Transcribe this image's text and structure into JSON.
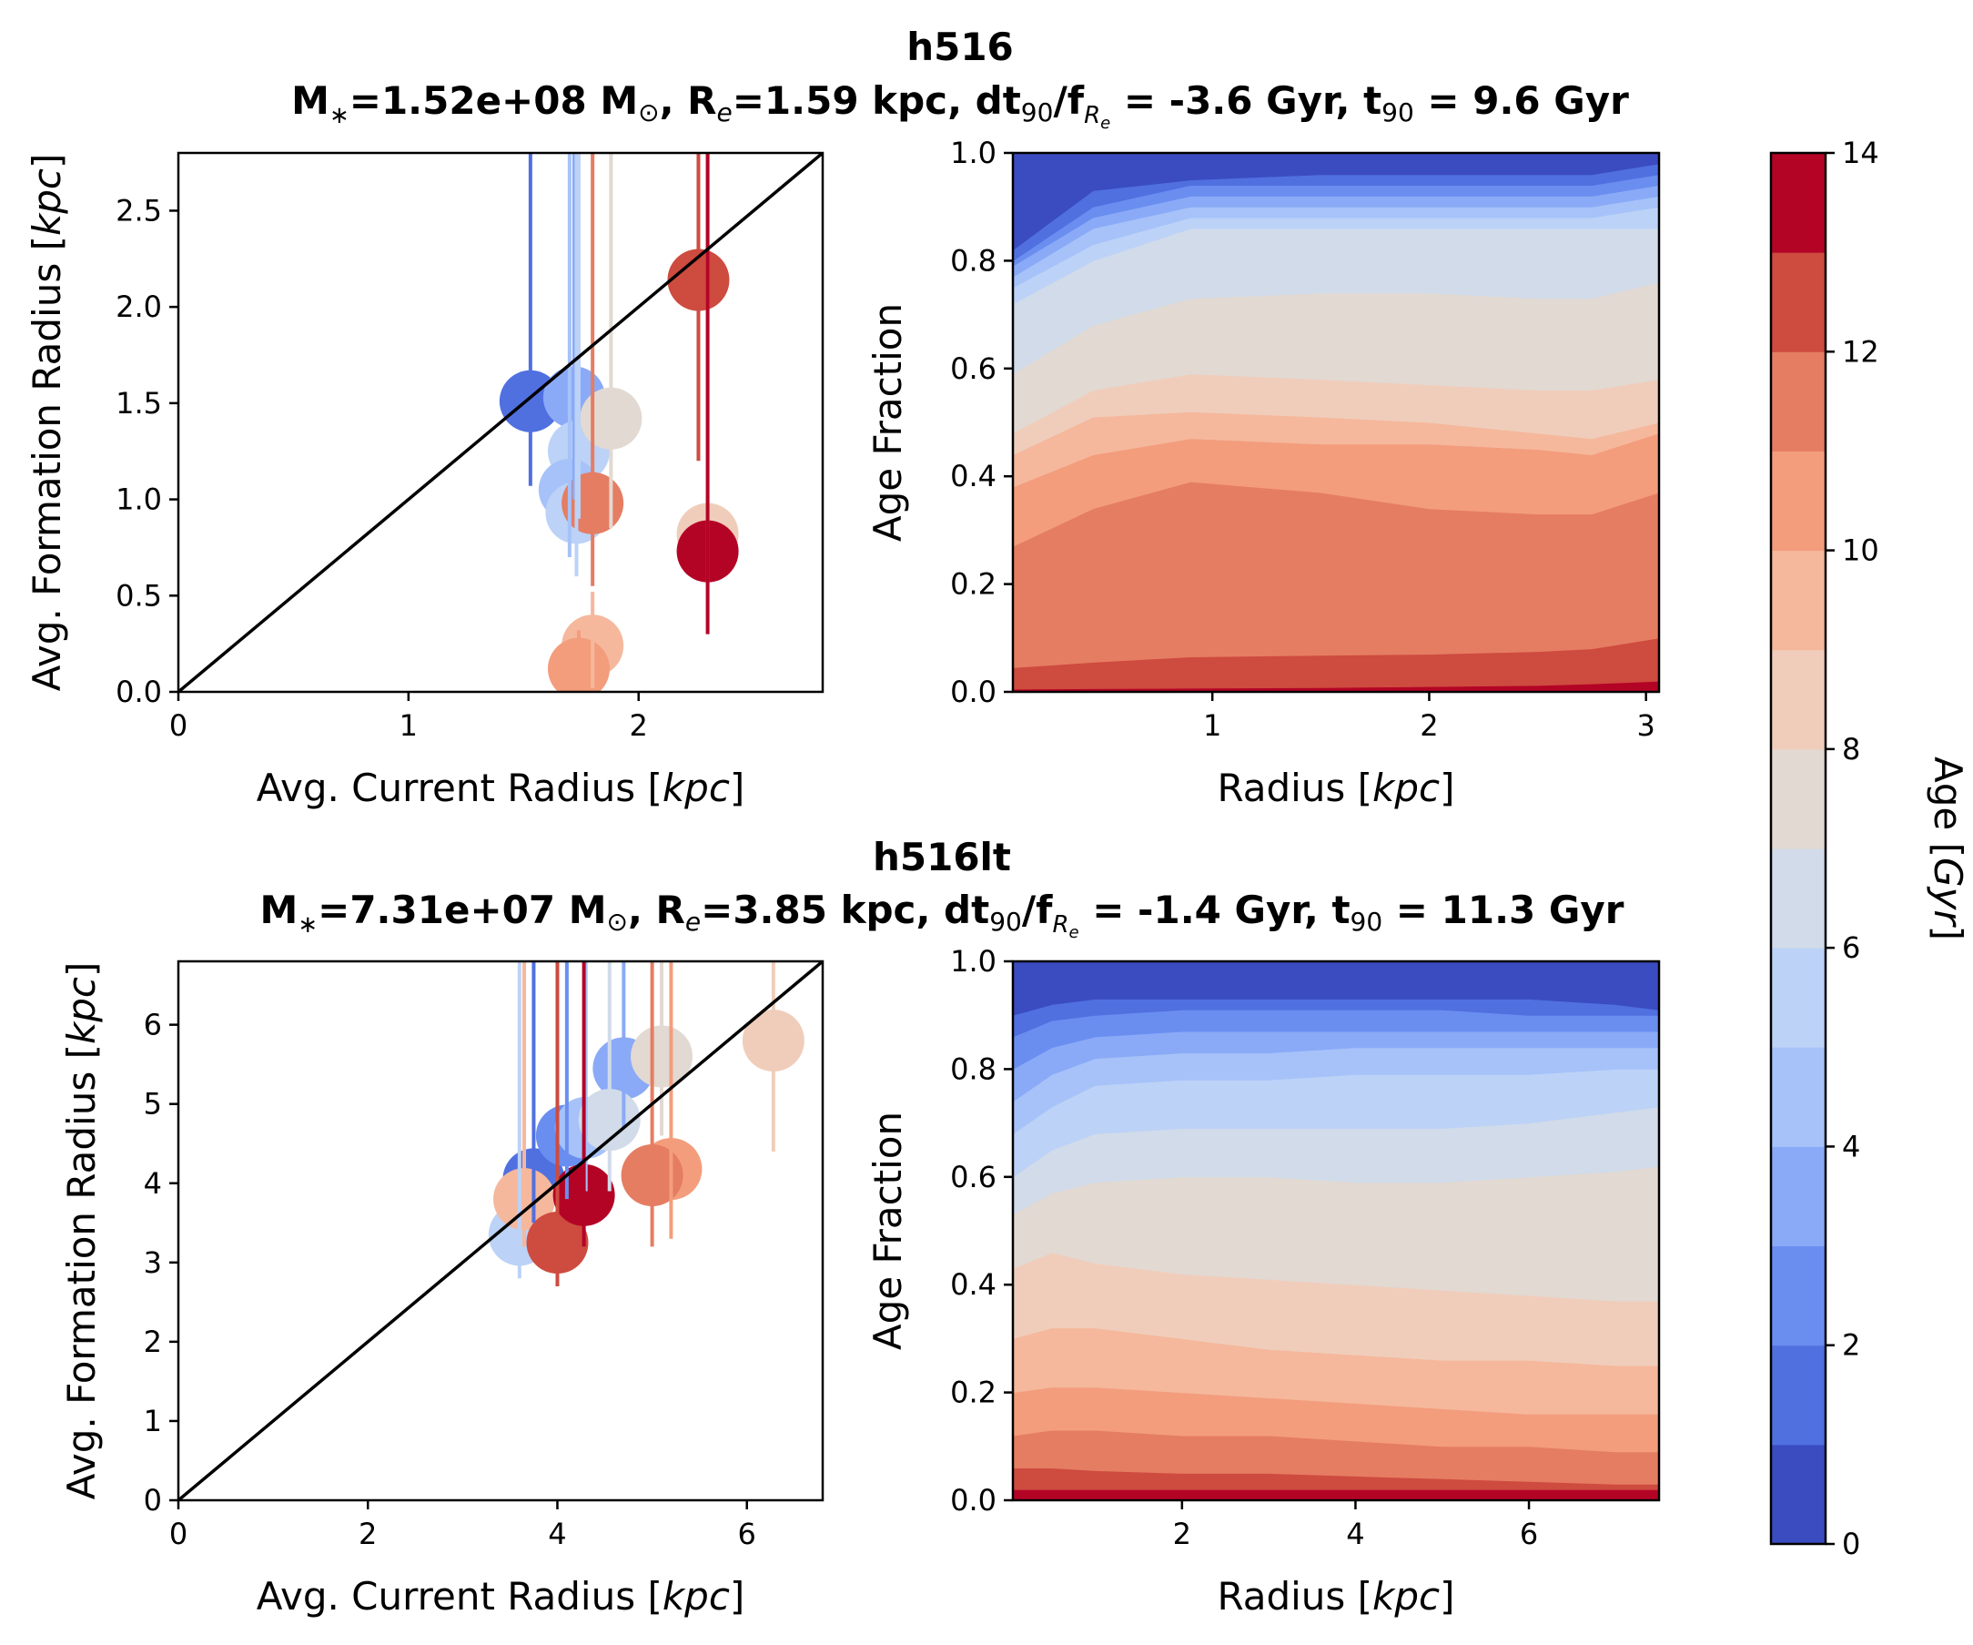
{
  "colors": {
    "levels": [
      "#3b4cc0",
      "#5070e0",
      "#6a8ef0",
      "#8aaaf7",
      "#a6c2f9",
      "#bcd2f7",
      "#d1dbe9",
      "#e2d9d2",
      "#f0cdbb",
      "#f5b89c",
      "#f39d7d",
      "#e57d62",
      "#ce4b3f",
      "#b40426"
    ],
    "diag": "#000000"
  },
  "chart_data": [
    {
      "type": "scatter",
      "panel": "top-left",
      "title": "h516",
      "subtitle": "M∗=1.52e+08 M⊙, Re=1.59 kpc, dt90/fRe=-3.6 Gyr, t90=9.6 Gyr",
      "subtitle_parts": {
        "m_sym": "M",
        "m_sub": "∗",
        "m_eq": "=1.52e+08 M",
        "m_sun": "⊙",
        "r_sym": ", R",
        "r_sub": "e",
        "r_val": "=1.59 kpc, dt",
        "t_sub": "90",
        "f_sym": "/f",
        "f_sub": "R",
        "f_subsub": "e",
        "dt_val": " = -3.6 Gyr, t",
        "t90_sub": "90",
        "t90_val": " = 9.6 Gyr"
      },
      "xlabel": "Avg. Current Radius [",
      "xlabel_unit": "kpc",
      "ylabel": "Avg. Formation Radius [",
      "ylabel_unit": "kpc",
      "label_close": "]",
      "xlim": [
        0,
        2.8
      ],
      "ylim": [
        0,
        2.8
      ],
      "xticks": [
        "0",
        "1",
        "2"
      ],
      "xtick_values": [
        0,
        1,
        2
      ],
      "yticks": [
        "0.0",
        "0.5",
        "1.0",
        "1.5",
        "2.0",
        "2.5"
      ],
      "ytick_values": [
        0,
        0.5,
        1.0,
        1.5,
        2.0,
        2.5
      ],
      "points": [
        {
          "x": 1.53,
          "y": 1.51,
          "ylo": 1.07,
          "yhi": 2.8,
          "age": 1.5
        },
        {
          "x": 1.72,
          "y": 1.53,
          "ylo": 1.0,
          "yhi": 2.8,
          "age": 3.5
        },
        {
          "x": 1.74,
          "y": 1.25,
          "ylo": 0.9,
          "yhi": 2.8,
          "age": 5.5
        },
        {
          "x": 1.7,
          "y": 1.05,
          "ylo": 0.7,
          "yhi": 2.8,
          "age": 4.5
        },
        {
          "x": 1.73,
          "y": 0.93,
          "ylo": 0.6,
          "yhi": 2.8,
          "age": 5.8
        },
        {
          "x": 1.88,
          "y": 1.42,
          "ylo": 0.85,
          "yhi": 2.8,
          "age": 7.5
        },
        {
          "x": 1.8,
          "y": 0.98,
          "ylo": 0.55,
          "yhi": 2.8,
          "age": 11.5
        },
        {
          "x": 2.26,
          "y": 2.14,
          "ylo": 1.2,
          "yhi": 2.8,
          "age": 12.5
        },
        {
          "x": 2.3,
          "y": 0.82,
          "ylo": 0.4,
          "yhi": 2.8,
          "age": 8.5
        },
        {
          "x": 2.3,
          "y": 0.73,
          "ylo": 0.3,
          "yhi": 2.8,
          "age": 13.5
        },
        {
          "x": 1.8,
          "y": 0.24,
          "ylo": 0.02,
          "yhi": 0.52,
          "age": 9.2
        },
        {
          "x": 1.74,
          "y": 0.12,
          "ylo": 0.0,
          "yhi": 0.32,
          "age": 10.4
        }
      ]
    },
    {
      "type": "area",
      "panel": "top-right",
      "xlabel": "Radius [",
      "xlabel_unit": "kpc",
      "ylabel": "Age Fraction",
      "label_close": "]",
      "xlim": [
        0.08,
        3.06
      ],
      "ylim": [
        0,
        1
      ],
      "xticks": [
        "1",
        "2",
        "3"
      ],
      "xtick_values": [
        1,
        2,
        3
      ],
      "yticks": [
        "0.0",
        "0.2",
        "0.4",
        "0.6",
        "0.8",
        "1.0"
      ],
      "ytick_values": [
        0,
        0.2,
        0.4,
        0.6,
        0.8,
        1.0
      ],
      "x": [
        0.08,
        0.45,
        0.9,
        1.5,
        2.0,
        2.5,
        2.75,
        3.06
      ],
      "boundaries": [
        [
          0.005,
          0.006,
          0.007,
          0.008,
          0.01,
          0.012,
          0.015,
          0.02
        ],
        [
          0.045,
          0.055,
          0.065,
          0.068,
          0.07,
          0.075,
          0.08,
          0.1
        ],
        [
          0.27,
          0.34,
          0.39,
          0.37,
          0.34,
          0.33,
          0.33,
          0.37
        ],
        [
          0.38,
          0.44,
          0.47,
          0.46,
          0.46,
          0.45,
          0.44,
          0.48
        ],
        [
          0.44,
          0.51,
          0.52,
          0.51,
          0.5,
          0.48,
          0.47,
          0.5
        ],
        [
          0.48,
          0.56,
          0.59,
          0.58,
          0.57,
          0.56,
          0.56,
          0.58
        ],
        [
          0.59,
          0.68,
          0.73,
          0.74,
          0.74,
          0.73,
          0.73,
          0.76
        ],
        [
          0.72,
          0.8,
          0.86,
          0.86,
          0.86,
          0.86,
          0.86,
          0.86
        ],
        [
          0.75,
          0.83,
          0.88,
          0.88,
          0.88,
          0.88,
          0.88,
          0.9
        ],
        [
          0.77,
          0.86,
          0.9,
          0.9,
          0.9,
          0.9,
          0.9,
          0.92
        ],
        [
          0.79,
          0.88,
          0.92,
          0.92,
          0.92,
          0.92,
          0.92,
          0.94
        ],
        [
          0.8,
          0.9,
          0.94,
          0.94,
          0.94,
          0.94,
          0.94,
          0.96
        ],
        [
          0.82,
          0.93,
          0.95,
          0.96,
          0.96,
          0.96,
          0.96,
          0.98
        ]
      ]
    },
    {
      "type": "scatter",
      "panel": "bottom-left",
      "title": "h516lt",
      "subtitle": "M∗=7.31e+07 M⊙, Re=3.85 kpc, dt90/fRe=-1.4 Gyr, t90=11.3 Gyr",
      "subtitle_parts": {
        "m_sym": "M",
        "m_sub": "∗",
        "m_eq": "=7.31e+07 M",
        "m_sun": "⊙",
        "r_sym": ", R",
        "r_sub": "e",
        "r_val": "=3.85 kpc, dt",
        "t_sub": "90",
        "f_sym": "/f",
        "f_sub": "R",
        "f_subsub": "e",
        "dt_val": " = -1.4 Gyr, t",
        "t90_sub": "90",
        "t90_val": " = 11.3 Gyr"
      },
      "xlabel": "Avg. Current Radius [",
      "xlabel_unit": "kpc",
      "ylabel": "Avg. Formation Radius [",
      "ylabel_unit": "kpc",
      "label_close": "]",
      "xlim": [
        0,
        6.8
      ],
      "ylim": [
        0,
        6.8
      ],
      "xticks": [
        "0",
        "2",
        "4",
        "6"
      ],
      "xtick_values": [
        0,
        2,
        4,
        6
      ],
      "yticks": [
        "0",
        "1",
        "2",
        "3",
        "4",
        "5",
        "6"
      ],
      "ytick_values": [
        0,
        1,
        2,
        3,
        4,
        5,
        6
      ],
      "points": [
        {
          "x": 3.75,
          "y": 4.05,
          "ylo": 3.5,
          "yhi": 6.8,
          "age": 1.5
        },
        {
          "x": 4.1,
          "y": 4.6,
          "ylo": 3.8,
          "yhi": 6.8,
          "age": 2.5
        },
        {
          "x": 4.7,
          "y": 5.45,
          "ylo": 4.7,
          "yhi": 6.8,
          "age": 3.5
        },
        {
          "x": 4.3,
          "y": 4.7,
          "ylo": 3.9,
          "yhi": 6.8,
          "age": 4.5
        },
        {
          "x": 3.6,
          "y": 3.35,
          "ylo": 2.8,
          "yhi": 6.8,
          "age": 5.5
        },
        {
          "x": 4.55,
          "y": 4.8,
          "ylo": 3.9,
          "yhi": 6.8,
          "age": 6.5
        },
        {
          "x": 5.1,
          "y": 5.6,
          "ylo": 4.6,
          "yhi": 6.8,
          "age": 7.5
        },
        {
          "x": 6.28,
          "y": 5.8,
          "ylo": 4.4,
          "yhi": 6.8,
          "age": 8.5
        },
        {
          "x": 3.65,
          "y": 3.8,
          "ylo": 3.2,
          "yhi": 6.8,
          "age": 9.5
        },
        {
          "x": 5.2,
          "y": 4.18,
          "ylo": 3.3,
          "yhi": 6.8,
          "age": 10.5
        },
        {
          "x": 5.0,
          "y": 4.1,
          "ylo": 3.2,
          "yhi": 6.8,
          "age": 11.5
        },
        {
          "x": 4.0,
          "y": 3.25,
          "ylo": 2.7,
          "yhi": 6.8,
          "age": 12.5
        },
        {
          "x": 4.28,
          "y": 3.85,
          "ylo": 3.2,
          "yhi": 6.8,
          "age": 13.5
        }
      ]
    },
    {
      "type": "area",
      "panel": "bottom-right",
      "xlabel": "Radius [",
      "xlabel_unit": "kpc",
      "ylabel": "Age Fraction",
      "label_close": "]",
      "xlim": [
        0.05,
        7.5
      ],
      "ylim": [
        0,
        1
      ],
      "xticks": [
        "2",
        "4",
        "6"
      ],
      "xtick_values": [
        2,
        4,
        6
      ],
      "yticks": [
        "0.0",
        "0.2",
        "0.4",
        "0.6",
        "0.8",
        "1.0"
      ],
      "ytick_values": [
        0,
        0.2,
        0.4,
        0.6,
        0.8,
        1.0
      ],
      "x": [
        0.05,
        0.5,
        1.0,
        2.0,
        3.0,
        4.0,
        5.0,
        6.0,
        7.0,
        7.5
      ],
      "boundaries": [
        [
          0.02,
          0.02,
          0.02,
          0.02,
          0.02,
          0.02,
          0.02,
          0.02,
          0.02,
          0.02
        ],
        [
          0.06,
          0.06,
          0.055,
          0.05,
          0.05,
          0.045,
          0.04,
          0.035,
          0.03,
          0.03
        ],
        [
          0.12,
          0.13,
          0.13,
          0.12,
          0.12,
          0.11,
          0.1,
          0.1,
          0.09,
          0.09
        ],
        [
          0.2,
          0.21,
          0.21,
          0.2,
          0.19,
          0.18,
          0.17,
          0.16,
          0.16,
          0.16
        ],
        [
          0.3,
          0.32,
          0.32,
          0.3,
          0.28,
          0.27,
          0.26,
          0.26,
          0.25,
          0.25
        ],
        [
          0.43,
          0.46,
          0.44,
          0.42,
          0.41,
          0.4,
          0.39,
          0.38,
          0.37,
          0.37
        ],
        [
          0.53,
          0.57,
          0.59,
          0.6,
          0.6,
          0.59,
          0.59,
          0.6,
          0.61,
          0.62
        ],
        [
          0.6,
          0.65,
          0.68,
          0.69,
          0.69,
          0.69,
          0.69,
          0.7,
          0.72,
          0.73
        ],
        [
          0.68,
          0.73,
          0.77,
          0.78,
          0.78,
          0.79,
          0.79,
          0.79,
          0.8,
          0.8
        ],
        [
          0.74,
          0.79,
          0.82,
          0.83,
          0.83,
          0.84,
          0.84,
          0.84,
          0.84,
          0.84
        ],
        [
          0.8,
          0.84,
          0.86,
          0.87,
          0.87,
          0.87,
          0.87,
          0.87,
          0.87,
          0.87
        ],
        [
          0.86,
          0.89,
          0.9,
          0.91,
          0.91,
          0.91,
          0.91,
          0.9,
          0.9,
          0.9
        ],
        [
          0.9,
          0.92,
          0.93,
          0.93,
          0.93,
          0.93,
          0.93,
          0.93,
          0.92,
          0.91
        ]
      ]
    },
    {
      "type": "colorbar",
      "panel": "right",
      "label": "Age [",
      "label_unit": "Gyr",
      "label_close": "]",
      "range": [
        0,
        14
      ],
      "ticks": [
        "0",
        "2",
        "4",
        "6",
        "8",
        "10",
        "12",
        "14"
      ],
      "tick_values": [
        0,
        2,
        4,
        6,
        8,
        10,
        12,
        14
      ]
    }
  ]
}
